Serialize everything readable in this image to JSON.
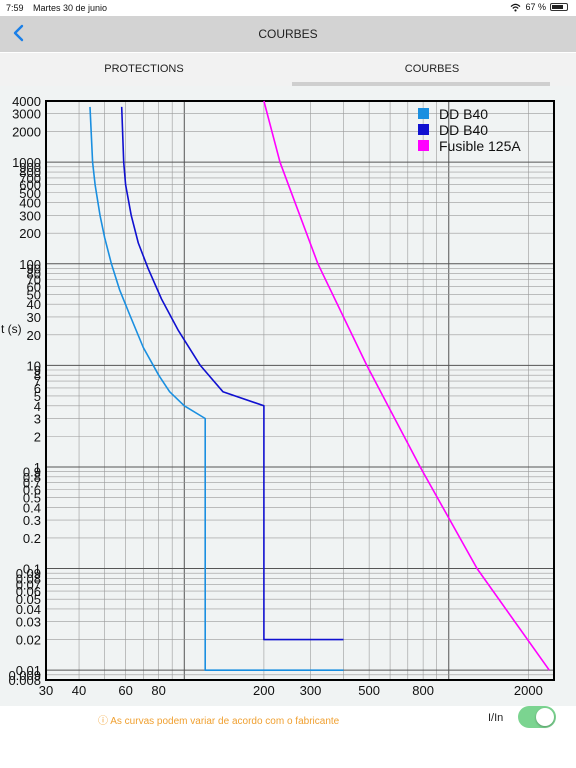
{
  "status_bar": {
    "time": "7:59",
    "date": "Martes 30 de junio",
    "battery": "67 %",
    "battery_level": 0.67
  },
  "navbar": {
    "title": "COURBES"
  },
  "tabs": [
    {
      "label": "PROTECTIONS",
      "active": false
    },
    {
      "label": "COURBES",
      "active": true
    }
  ],
  "chart_data": {
    "type": "line",
    "ylabel": "t (s)",
    "xscale": "log",
    "yscale": "log",
    "xlim": [
      30,
      2500
    ],
    "ylim": [
      0.008,
      4000
    ],
    "grid": true,
    "legend_position": "top-right",
    "x_ticks": [
      "30",
      "40",
      "60",
      "80",
      "200",
      "300",
      "500",
      "800",
      "2000"
    ],
    "y_ticks": [
      "4000",
      "3000",
      "2000",
      "1000",
      "900",
      "800",
      "700",
      "600",
      "500",
      "400",
      "300",
      "200",
      "100",
      "90",
      "80",
      "70",
      "60",
      "50",
      "40",
      "30",
      "20",
      "10",
      "9",
      "8",
      "7",
      "6",
      "5",
      "4",
      "3",
      "2",
      "1",
      "0.9",
      "0.8",
      "0.7",
      "0.6",
      "0.5",
      "0.4",
      "0.3",
      "0.2",
      "0.1",
      "0.09",
      "0.08",
      "0.07",
      "0.06",
      "0.05",
      "0.04",
      "0.03",
      "0.02",
      "0.01",
      "0.009",
      "0.008"
    ],
    "series": [
      {
        "name": "DD B40",
        "color": "#1a8fe0",
        "points": [
          [
            44,
            3500
          ],
          [
            45,
            1000
          ],
          [
            46,
            600
          ],
          [
            48,
            300
          ],
          [
            50,
            180
          ],
          [
            53,
            100
          ],
          [
            57,
            55
          ],
          [
            62,
            32
          ],
          [
            70,
            15
          ],
          [
            80,
            8
          ],
          [
            88,
            5.5
          ],
          [
            100,
            4
          ],
          [
            120,
            3
          ],
          [
            120,
            0.01
          ],
          [
            400,
            0.01
          ]
        ]
      },
      {
        "name": "DD B40",
        "color": "#1010d0",
        "points": [
          [
            58,
            3500
          ],
          [
            59,
            1000
          ],
          [
            60,
            600
          ],
          [
            63,
            300
          ],
          [
            67,
            160
          ],
          [
            73,
            90
          ],
          [
            82,
            45
          ],
          [
            95,
            22
          ],
          [
            115,
            10
          ],
          [
            140,
            5.5
          ],
          [
            200,
            4
          ],
          [
            200,
            0.02
          ],
          [
            400,
            0.02
          ]
        ]
      },
      {
        "name": "Fusible 125A",
        "color": "#ff00ff",
        "points": [
          [
            200,
            4000
          ],
          [
            230,
            1000
          ],
          [
            320,
            100
          ],
          [
            490,
            10
          ],
          [
            780,
            1
          ],
          [
            1280,
            0.1
          ],
          [
            2400,
            0.01
          ]
        ]
      }
    ]
  },
  "footer": {
    "warning": "ⓘ As curvas podem variar de acordo com o fabricante",
    "toggle_label": "I/In",
    "toggle_on": true
  }
}
